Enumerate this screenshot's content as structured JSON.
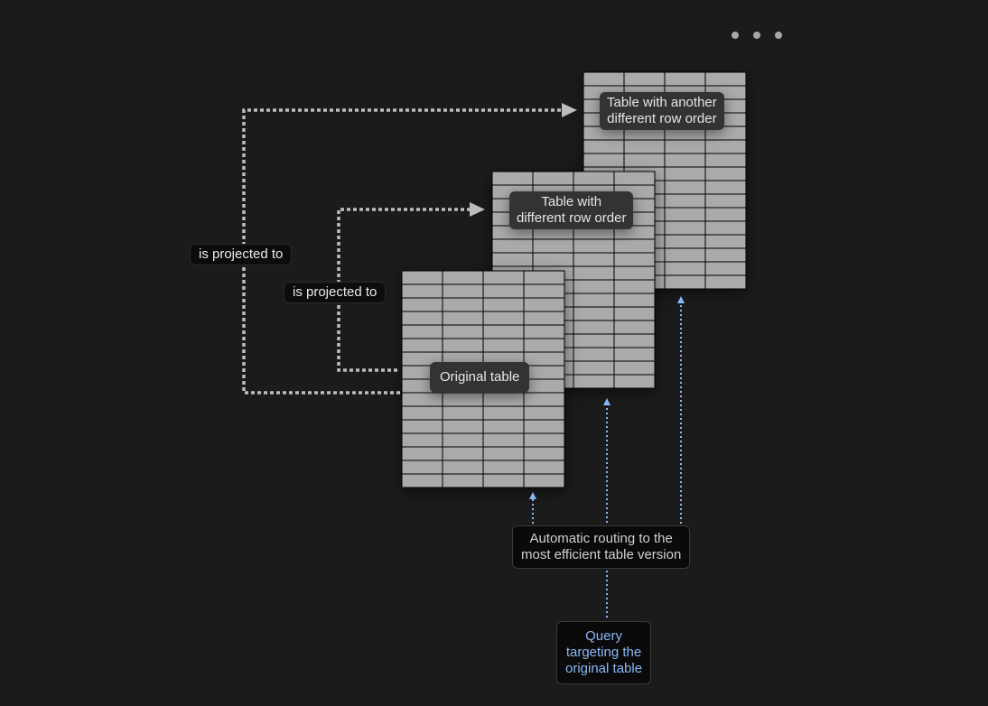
{
  "tables": [
    {
      "label": "Original table"
    },
    {
      "label": "Table with\ndifferent row order"
    },
    {
      "label": "Table with another\ndifferent row order"
    }
  ],
  "edges": [
    {
      "label": "is projected to"
    },
    {
      "label": "is projected to"
    }
  ],
  "routing": {
    "label": "Automatic routing to the\nmost efficient table version"
  },
  "query": {
    "label": "Query\ntargeting the\noriginal table"
  },
  "menu_icon": "more-horizontal-icon",
  "colors": {
    "background": "#1b1b1b",
    "table_fill": "#aaaaaa",
    "projection_line": "#bdbdbd",
    "routing_line": "#8ab8f5"
  }
}
